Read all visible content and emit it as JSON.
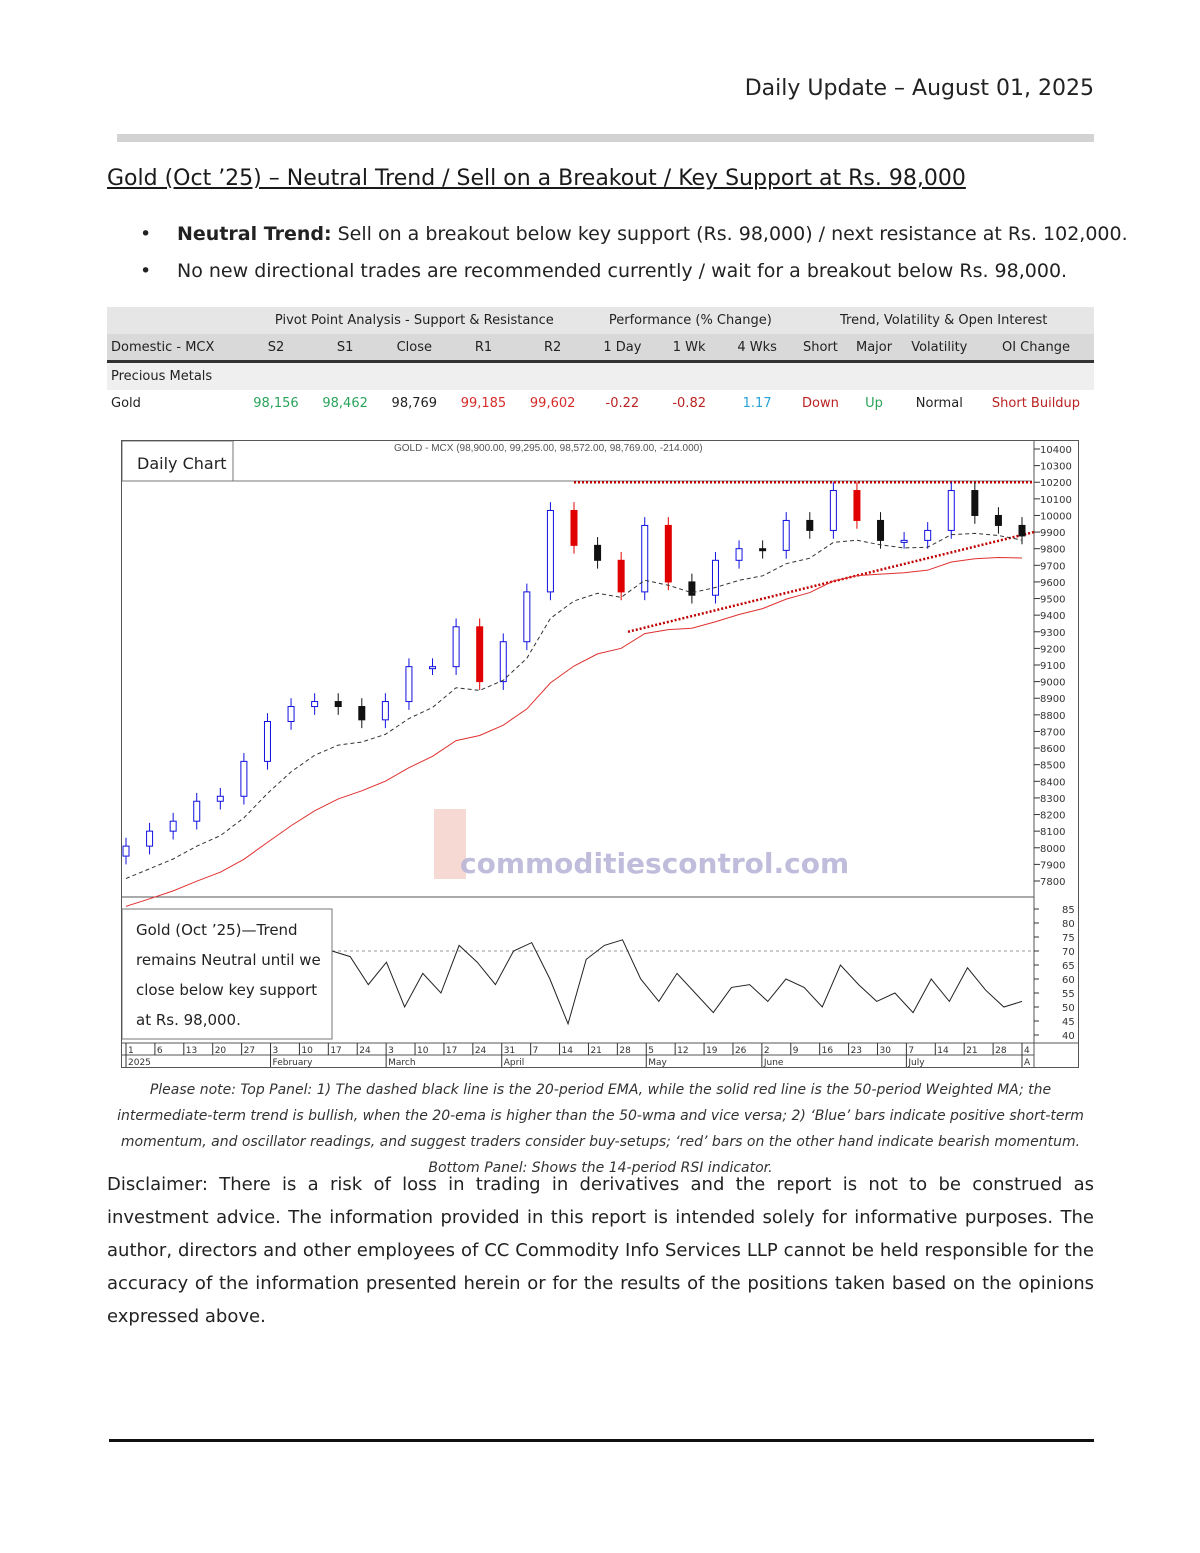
{
  "header": {
    "date": "Daily Update – August 01, 2025"
  },
  "title": "Gold (Oct   ’25) – Neutral Trend / Sell on a Breakout / Key Support at Rs. 98,000",
  "bullets": [
    {
      "bold": "Neutral Trend:",
      "text": " Sell on a breakout below key support (Rs. 98,000) / next resistance at Rs. 102,000."
    },
    {
      "bold": "",
      "text": "No new directional trades are recommended currently / wait for a breakout below Rs. 98,000."
    }
  ],
  "table": {
    "groups": [
      "Pivot Point Analysis - Support & Resistance",
      "Performance (% Change)",
      "Trend, Volatility & Open Interest"
    ],
    "columns": [
      "Domestic - MCX",
      "S2",
      "S1",
      "Close",
      "R1",
      "R2",
      "1 Day",
      "1 Wk",
      "4 Wks",
      "Short",
      "Major",
      "Volatility",
      "OI Change"
    ],
    "section": "Precious Metals",
    "rows": [
      [
        "Gold",
        "98,156",
        "98,462",
        "98,769",
        "99,185",
        "99,602",
        "-0.22",
        "-0.82",
        "1.17",
        "Down",
        "Up",
        "Normal",
        "Short Buildup"
      ]
    ],
    "colors": {
      "support": "#2aa35a",
      "resistance": "#d62b2b",
      "negative": "#b22222",
      "positive_blue": "#29a3d8"
    }
  },
  "chart_data": {
    "type": "candlestick",
    "label": "Daily Chart",
    "title": "GOLD - MCX (98,900.00, 99,295.00, 98,572.00, 98,769.00, -214.000)",
    "ylim": [
      78000,
      104000
    ],
    "y_ticks": [
      "10400",
      "10300",
      "10200",
      "10100",
      "10000",
      "9900",
      "9800",
      "9700",
      "9600",
      "9500",
      "9400",
      "9300",
      "9200",
      "9100",
      "9000",
      "8900",
      "8800",
      "8700",
      "8600",
      "8500",
      "8400",
      "8300",
      "8200",
      "8100",
      "8000",
      "7900",
      "7800"
    ],
    "x_ticks_days": [
      "1",
      "6",
      "13",
      "20",
      "27",
      "3",
      "10",
      "17",
      "24",
      "3",
      "10",
      "17",
      "24",
      "31",
      "7",
      "14",
      "21",
      "28",
      "5",
      "12",
      "19",
      "26",
      "2",
      "9",
      "16",
      "23",
      "30",
      "7",
      "14",
      "21",
      "28",
      "4"
    ],
    "x_months": [
      "2025",
      "February",
      "March",
      "April",
      "May",
      "June",
      "July",
      "A"
    ],
    "closes": [
      80100,
      81000,
      81600,
      82800,
      83100,
      85200,
      87600,
      88500,
      88800,
      88500,
      87700,
      88800,
      90900,
      90900,
      93300,
      90000,
      92400,
      95400,
      100300,
      98200,
      97300,
      95400,
      99400,
      96000,
      95200,
      97300,
      98000,
      97900,
      99700,
      99100,
      101500,
      99700,
      98500,
      98500,
      99100,
      101500,
      100000,
      99400,
      98769
    ],
    "resistance_level": 102000,
    "support_trendline": [
      93000,
      99000
    ],
    "annotation": "Gold (Oct   ’25)—Trend remains Neutral until we close below key support at Rs. 98,000.",
    "watermark": "commoditiescontrol.com",
    "rsi": {
      "ticks": [
        "85",
        "80",
        "75",
        "70",
        "65",
        "60",
        "55",
        "50",
        "45",
        "40"
      ],
      "ylim": [
        40,
        85
      ],
      "level": 70,
      "values": [
        70,
        68,
        58,
        66,
        50,
        62,
        55,
        72,
        66,
        58,
        70,
        73,
        60,
        44,
        67,
        72,
        74,
        60,
        52,
        62,
        55,
        48,
        57,
        58,
        52,
        60,
        57,
        50,
        65,
        58,
        52,
        55,
        48,
        60,
        52,
        64,
        56,
        50,
        52
      ]
    },
    "colors": {
      "up": "#1010e0",
      "down": "#111111",
      "bear": "#e00000",
      "ema": "#333333",
      "wma": "#e03030",
      "trend": "#c00000"
    }
  },
  "note": "Please note: Top Panel: 1) The dashed black line is the 20-period EMA, while the solid red line is the 50-period Weighted MA; the intermediate-term trend is bullish, when the 20-ema is higher than the 50-wma and vice versa; 2)   ‘Blue’   bars indicate positive short-term momentum, and oscillator readings, and suggest traders consider buy-setups;   ‘red’   bars on the other hand indicate bearish momentum. Bottom Panel: Shows the 14-period RSI indicator.",
  "disclaimer": "Disclaimer: There is a risk of loss in trading in derivatives and the report is not to be construed as investment advice. The information provided in this report is intended solely for informative purposes. The author, directors and other employees of CC Commodity Info Services LLP cannot be held responsible for the accuracy of the information presented herein or for the results of the positions taken based on the opinions expressed above."
}
